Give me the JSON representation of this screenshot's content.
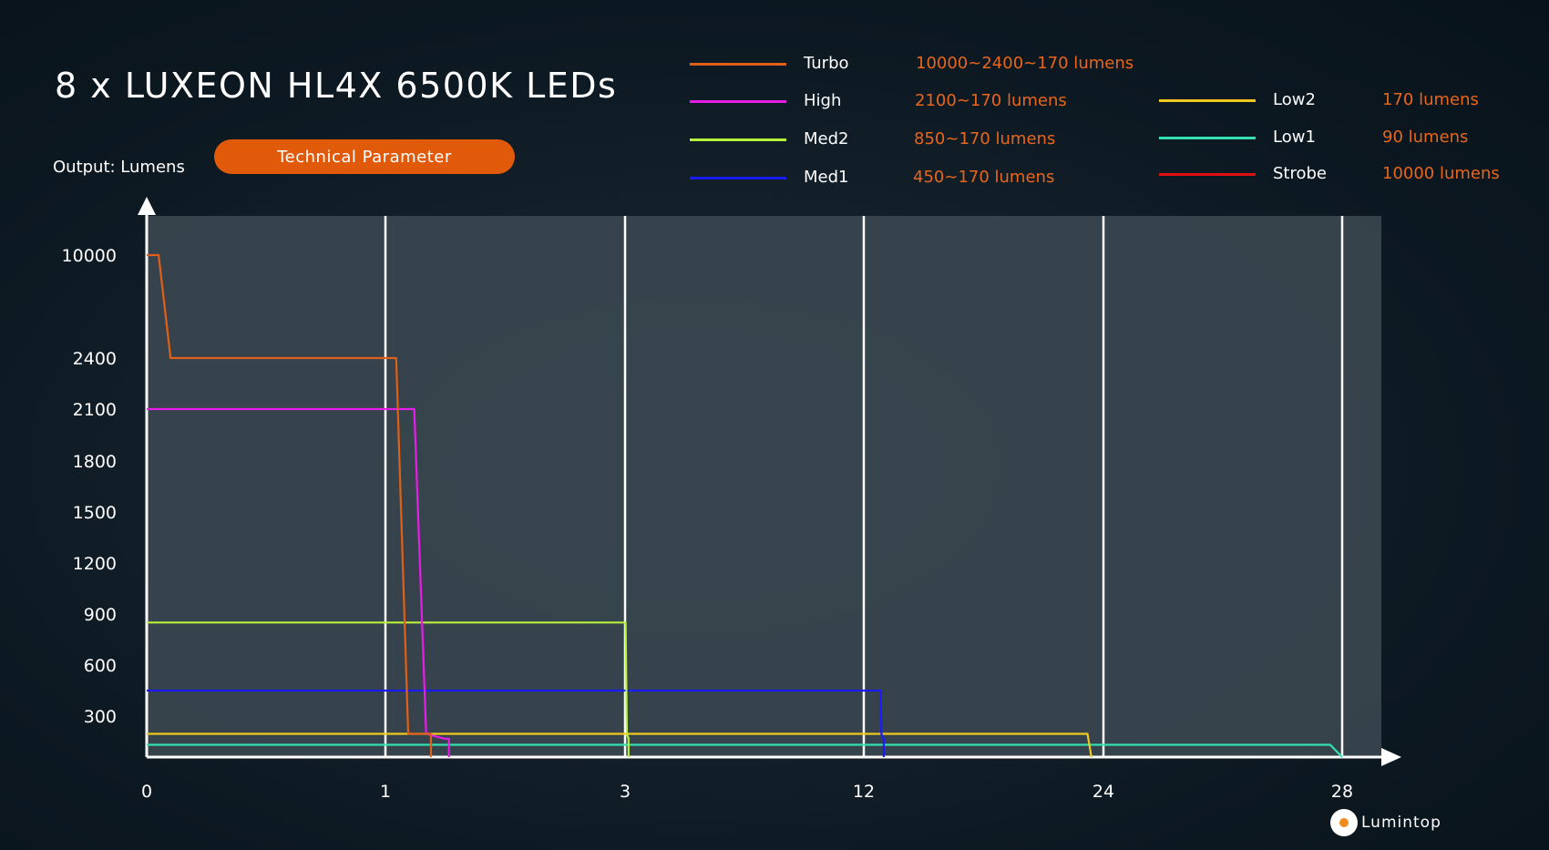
{
  "title": "8 x LUXEON HL4X 6500K LEDs",
  "output_label": "Output: Lumens",
  "tech_button": "Technical Parameter",
  "brand_text": "Lumintop",
  "legend": [
    {
      "name": "Turbo",
      "desc": "10000~2400~170 lumens",
      "color": "#e0601a"
    },
    {
      "name": "High",
      "desc": "2100~170 lumens",
      "color": "#e61de6"
    },
    {
      "name": "Med2",
      "desc": "850~170 lumens",
      "color": "#b8f03c"
    },
    {
      "name": "Med1",
      "desc": "450~170 lumens",
      "color": "#1a1aff"
    },
    {
      "name": "Low2",
      "desc": "170 lumens",
      "color": "#f0c81e"
    },
    {
      "name": "Low1",
      "desc": "90 lumens",
      "color": "#33e0b0"
    },
    {
      "name": "Strobe",
      "desc": "10000 lumens",
      "color": "#e01010"
    }
  ],
  "chart_data": {
    "type": "line",
    "xlabel": "",
    "ylabel": "Output: Lumens",
    "x_ticks": [
      "0",
      "1",
      "3",
      "12",
      "24",
      "28"
    ],
    "y_ticks": [
      "300",
      "600",
      "900",
      "1200",
      "1500",
      "1800",
      "2100",
      "2400",
      "10000"
    ],
    "grid": "vertical",
    "series": [
      {
        "name": "Turbo",
        "color": "#e0601a",
        "points": [
          [
            0,
            "10000"
          ],
          [
            0.05,
            "10000"
          ],
          [
            0.1,
            "2400"
          ],
          [
            1.09,
            "2400"
          ],
          [
            1.19,
            "170"
          ],
          [
            1.38,
            "170"
          ],
          [
            1.38,
            "0"
          ]
        ]
      },
      {
        "name": "High",
        "color": "#e61de6",
        "points": [
          [
            0,
            "2100"
          ],
          [
            1.24,
            "2100"
          ],
          [
            1.34,
            "170"
          ],
          [
            1.49,
            "135"
          ],
          [
            1.53,
            "135"
          ],
          [
            1.53,
            "0"
          ]
        ]
      },
      {
        "name": "Med2",
        "color": "#b8f03c",
        "points": [
          [
            0,
            "850"
          ],
          [
            3.02,
            "850"
          ],
          [
            3.07,
            "170"
          ],
          [
            3.12,
            "140"
          ],
          [
            3.13,
            "140"
          ],
          [
            3.13,
            "0"
          ]
        ]
      },
      {
        "name": "Med1",
        "color": "#1a1aff",
        "points": [
          [
            0,
            "450"
          ],
          [
            12.85,
            "450"
          ],
          [
            12.88,
            "170"
          ],
          [
            12.98,
            "135"
          ],
          [
            13,
            "135"
          ],
          [
            13,
            "0"
          ]
        ]
      },
      {
        "name": "Low2",
        "color": "#f0c81e",
        "points": [
          [
            0,
            "170"
          ],
          [
            14,
            "170"
          ],
          [
            23.2,
            "170"
          ],
          [
            23.4,
            "0"
          ]
        ]
      },
      {
        "name": "Low1",
        "color": "#33e0b0",
        "points": [
          [
            0,
            "90"
          ],
          [
            27.8,
            "90"
          ],
          [
            28,
            "0"
          ]
        ]
      }
    ]
  }
}
